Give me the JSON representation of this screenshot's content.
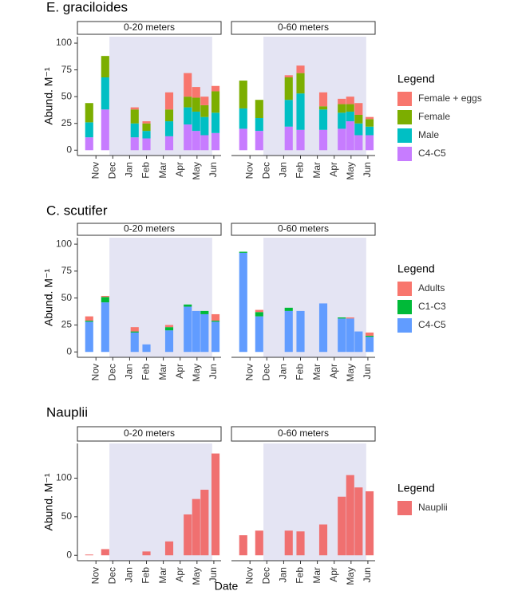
{
  "chart_data": [
    {
      "type": "bar",
      "stacked": true,
      "title": "E. graciloides",
      "y_label": "Abund. M⁻¹",
      "legend_title": "Legend",
      "series": [
        {
          "name": "Female + eggs",
          "color": "#f8766d"
        },
        {
          "name": "Female",
          "color": "#7cae00"
        },
        {
          "name": "Male",
          "color": "#00bfc4"
        },
        {
          "name": "C4-C5",
          "color": "#c77cff"
        }
      ],
      "x": [
        -0.4,
        0.55,
        2.3,
        3.0,
        4.35,
        5.45,
        5.95,
        6.45,
        7.1
      ],
      "xlim": [
        -1.1,
        7.43
      ],
      "xticks": [
        {
          "value": 0,
          "label": "Nov"
        },
        {
          "value": 1,
          "label": "Dec"
        },
        {
          "value": 2,
          "label": "Jan"
        },
        {
          "value": 3,
          "label": "Feb"
        },
        {
          "value": 4,
          "label": "Mar"
        },
        {
          "value": 5,
          "label": "Apr"
        },
        {
          "value": 6,
          "label": "May"
        },
        {
          "value": 7,
          "label": "Jun"
        }
      ],
      "shaded_x": [
        0.8,
        6.9
      ],
      "ylim": [
        -5,
        106
      ],
      "yticks": [
        0,
        25,
        50,
        75,
        100
      ],
      "facets": [
        {
          "label": "0-20 meters",
          "values": [
            [
              0,
              0,
              2,
              2,
              16,
              22,
              10,
              8,
              5
            ],
            [
              18,
              20,
              13,
              7,
              11,
              10,
              13,
              11,
              20
            ],
            [
              14,
              30,
              13,
              7,
              14,
              16,
              18,
              17,
              19
            ],
            [
              12,
              38,
              12,
              11,
              13,
              24,
              18,
              14,
              16
            ]
          ]
        },
        {
          "label": "0-60 meters",
          "values": [
            [
              0,
              0,
              2,
              7,
              13,
              5,
              7,
              11,
              2
            ],
            [
              26,
              17,
              21,
              19,
              3,
              8,
              7,
              8,
              7
            ],
            [
              19,
              12,
              25,
              34,
              19,
              15,
              9,
              11,
              8
            ],
            [
              20,
              18,
              22,
              19,
              19,
              20,
              27,
              14,
              14
            ]
          ]
        }
      ]
    },
    {
      "type": "bar",
      "stacked": true,
      "title": "C. scutifer",
      "y_label": "Abund. M⁻¹",
      "legend_title": "Legend",
      "series": [
        {
          "name": "Adults",
          "color": "#f8766d"
        },
        {
          "name": "C1-C3",
          "color": "#00ba38"
        },
        {
          "name": "C4-C5",
          "color": "#619cff"
        }
      ],
      "x": [
        -0.4,
        0.55,
        2.3,
        3.0,
        4.35,
        5.45,
        5.95,
        6.45,
        7.1
      ],
      "xlim": [
        -1.1,
        7.43
      ],
      "xticks": [
        {
          "value": 0,
          "label": "Nov"
        },
        {
          "value": 1,
          "label": "Dec"
        },
        {
          "value": 2,
          "label": "Jan"
        },
        {
          "value": 3,
          "label": "Feb"
        },
        {
          "value": 4,
          "label": "Mar"
        },
        {
          "value": 5,
          "label": "Apr"
        },
        {
          "value": 6,
          "label": "May"
        },
        {
          "value": 7,
          "label": "Jun"
        }
      ],
      "shaded_x": [
        0.8,
        6.9
      ],
      "ylim": [
        -5,
        106
      ],
      "yticks": [
        0,
        25,
        50,
        75,
        100
      ],
      "facets": [
        {
          "label": "0-20 meters",
          "values": [
            [
              4,
              1,
              4,
              0,
              2,
              0,
              0,
              0,
              6
            ],
            [
              1,
              5,
              1,
              0,
              3,
              2,
              0,
              3,
              1
            ],
            [
              28,
              46,
              18,
              7,
              20,
              42,
              38,
              35,
              28
            ]
          ]
        },
        {
          "label": "0-60 meters",
          "values": [
            [
              0,
              2,
              0,
              0,
              0,
              0,
              1,
              0,
              3
            ],
            [
              1,
              4,
              3,
              0,
              0,
              1,
              0,
              0,
              1
            ],
            [
              92,
              33,
              38,
              38,
              45,
              31,
              31,
              19,
              14
            ]
          ]
        }
      ]
    },
    {
      "type": "bar",
      "stacked": true,
      "title": "Nauplii",
      "y_label": "Abund. M⁻¹",
      "x_label": "Date",
      "legend_title": "Legend",
      "series": [
        {
          "name": "Nauplii",
          "color": "#f07070"
        }
      ],
      "x": [
        -0.4,
        0.55,
        2.3,
        3.0,
        4.35,
        5.45,
        5.95,
        6.45,
        7.1
      ],
      "xlim": [
        -1.1,
        7.43
      ],
      "xticks": [
        {
          "value": 0,
          "label": "Nov"
        },
        {
          "value": 1,
          "label": "Dec"
        },
        {
          "value": 2,
          "label": "Jan"
        },
        {
          "value": 3,
          "label": "Feb"
        },
        {
          "value": 4,
          "label": "Mar"
        },
        {
          "value": 5,
          "label": "Apr"
        },
        {
          "value": 6,
          "label": "May"
        },
        {
          "value": 7,
          "label": "Jun"
        }
      ],
      "shaded_x": [
        0.8,
        6.9
      ],
      "ylim": [
        -7,
        145
      ],
      "yticks": [
        0,
        50,
        100
      ],
      "facets": [
        {
          "label": "0-20 meters",
          "values": [
            [
              1,
              8,
              null,
              5,
              18,
              53,
              73,
              85,
              132
            ]
          ]
        },
        {
          "label": "0-60 meters",
          "values": [
            [
              26,
              32,
              32,
              31,
              40,
              76,
              104,
              88,
              83
            ]
          ]
        }
      ]
    }
  ]
}
